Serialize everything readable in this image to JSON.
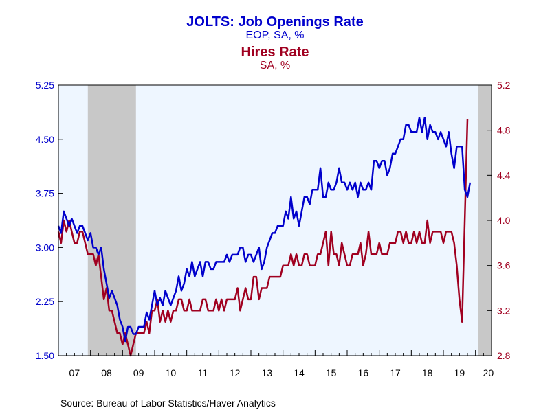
{
  "chart_data": {
    "type": "line",
    "title_left": "JOLTS: Job Openings Rate",
    "subtitle_left": "EOP, SA, %",
    "title_right": "Hires Rate",
    "subtitle_right": "SA, %",
    "source": "Source:  Bureau of Labor Statistics/Haver Analytics",
    "colors": {
      "openings": "#0000cc",
      "hires": "#a00020",
      "plot_bg": "#eef6ff",
      "recession": "#c8c8c8"
    },
    "x_range": [
      2007.0,
      2020.5
    ],
    "x_tick_labels": [
      "07",
      "08",
      "09",
      "10",
      "11",
      "12",
      "13",
      "14",
      "15",
      "16",
      "17",
      "18",
      "19",
      "20"
    ],
    "y_left": {
      "range": [
        1.5,
        5.25
      ],
      "ticks": [
        "1.50",
        "2.25",
        "3.00",
        "3.75",
        "4.50",
        "5.25"
      ]
    },
    "y_right": {
      "range": [
        2.8,
        5.2
      ],
      "ticks": [
        "2.8",
        "3.2",
        "3.6",
        "4.0",
        "4.4",
        "4.8",
        "5.2"
      ]
    },
    "recessions": [
      [
        2007.917,
        2009.417
      ],
      [
        2020.083,
        2020.5
      ]
    ],
    "series": [
      {
        "name": "JOLTS: Job Openings Rate",
        "axis": "left",
        "start": 2007.0,
        "step": 0.0833333,
        "values": [
          3.3,
          3.2,
          3.5,
          3.4,
          3.3,
          3.4,
          3.3,
          3.2,
          3.3,
          3.3,
          3.2,
          3.1,
          3.2,
          3.0,
          3.0,
          2.9,
          3.0,
          2.7,
          2.5,
          2.3,
          2.4,
          2.3,
          2.2,
          2.0,
          1.9,
          1.7,
          1.9,
          1.9,
          1.8,
          1.8,
          1.9,
          1.9,
          1.9,
          2.1,
          2.0,
          2.2,
          2.4,
          2.2,
          2.3,
          2.2,
          2.4,
          2.3,
          2.2,
          2.3,
          2.4,
          2.6,
          2.4,
          2.5,
          2.7,
          2.6,
          2.8,
          2.6,
          2.7,
          2.8,
          2.6,
          2.8,
          2.8,
          2.7,
          2.7,
          2.8,
          2.8,
          2.8,
          2.8,
          2.9,
          2.8,
          2.9,
          2.9,
          2.9,
          3.0,
          3.0,
          2.8,
          2.9,
          2.9,
          2.8,
          2.9,
          3.0,
          2.7,
          2.8,
          3.0,
          3.1,
          3.2,
          3.2,
          3.3,
          3.3,
          3.3,
          3.5,
          3.4,
          3.7,
          3.4,
          3.5,
          3.3,
          3.5,
          3.7,
          3.7,
          3.6,
          3.8,
          3.8,
          3.8,
          4.1,
          3.7,
          3.7,
          3.9,
          3.8,
          3.8,
          3.9,
          4.1,
          3.9,
          3.9,
          3.8,
          3.9,
          3.8,
          3.9,
          3.7,
          3.9,
          3.8,
          3.8,
          3.9,
          3.8,
          4.2,
          4.2,
          4.1,
          4.2,
          4.2,
          4.0,
          4.1,
          4.3,
          4.3,
          4.4,
          4.5,
          4.5,
          4.7,
          4.7,
          4.6,
          4.6,
          4.6,
          4.8,
          4.6,
          4.8,
          4.5,
          4.7,
          4.6,
          4.6,
          4.5,
          4.6,
          4.5,
          4.4,
          4.6,
          4.3,
          4.1,
          4.4,
          4.4,
          4.4,
          3.8,
          3.7,
          3.9
        ]
      },
      {
        "name": "Hires Rate",
        "axis": "right",
        "start": 2007.0,
        "step": 0.0833333,
        "values": [
          3.9,
          3.8,
          4.0,
          3.9,
          4.0,
          3.9,
          3.8,
          3.8,
          3.9,
          3.9,
          3.8,
          3.7,
          3.7,
          3.7,
          3.6,
          3.7,
          3.5,
          3.3,
          3.4,
          3.2,
          3.2,
          3.1,
          3.0,
          3.0,
          2.9,
          3.0,
          2.9,
          2.8,
          2.9,
          3.0,
          3.0,
          3.0,
          3.0,
          3.1,
          3.0,
          3.2,
          3.2,
          3.3,
          3.1,
          3.2,
          3.1,
          3.2,
          3.1,
          3.2,
          3.2,
          3.3,
          3.3,
          3.2,
          3.2,
          3.3,
          3.2,
          3.2,
          3.2,
          3.2,
          3.3,
          3.3,
          3.2,
          3.2,
          3.2,
          3.3,
          3.2,
          3.3,
          3.2,
          3.3,
          3.3,
          3.3,
          3.3,
          3.4,
          3.2,
          3.3,
          3.4,
          3.3,
          3.3,
          3.5,
          3.5,
          3.3,
          3.4,
          3.4,
          3.4,
          3.5,
          3.5,
          3.5,
          3.5,
          3.5,
          3.6,
          3.6,
          3.6,
          3.7,
          3.6,
          3.7,
          3.6,
          3.6,
          3.7,
          3.7,
          3.6,
          3.6,
          3.6,
          3.7,
          3.7,
          3.8,
          3.9,
          3.6,
          3.9,
          3.7,
          3.7,
          3.6,
          3.8,
          3.7,
          3.6,
          3.6,
          3.7,
          3.7,
          3.7,
          3.8,
          3.6,
          3.7,
          3.9,
          3.7,
          3.7,
          3.7,
          3.8,
          3.7,
          3.7,
          3.7,
          3.8,
          3.8,
          3.8,
          3.9,
          3.9,
          3.8,
          3.9,
          3.8,
          3.8,
          3.9,
          3.8,
          3.9,
          3.8,
          3.8,
          4.0,
          3.8,
          3.9,
          3.9,
          3.9,
          3.9,
          3.8,
          3.9,
          3.9,
          3.9,
          3.8,
          3.6,
          3.3,
          3.1,
          4.0,
          4.9
        ]
      }
    ]
  }
}
